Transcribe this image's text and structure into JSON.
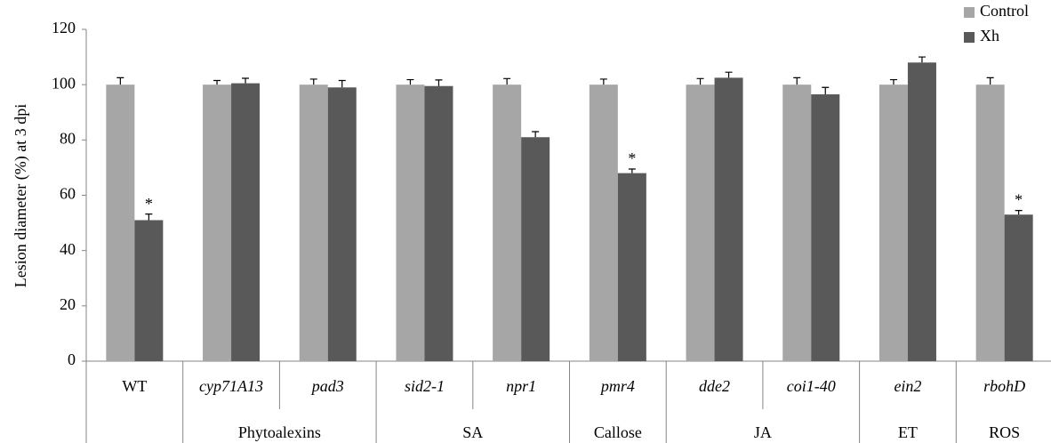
{
  "chart_data": {
    "type": "bar",
    "y_label": "Lesion diameter (%) at 3 dpi",
    "categories": [
      "WT",
      "cyp71A13",
      "pad3",
      "sid2-1",
      "npr1",
      "pmr4",
      "dde2",
      "coi1-40",
      "ein2",
      "rbohD"
    ],
    "italic_categories": [
      false,
      true,
      true,
      true,
      true,
      true,
      true,
      true,
      true,
      true
    ],
    "category_groups": [
      null,
      "Phytoalexins",
      "Phytoalexins",
      "SA",
      "SA",
      "Callose",
      "JA",
      "JA",
      "ET",
      "ROS"
    ],
    "series": [
      {
        "name": "Control",
        "color": "#a6a6a6",
        "values": [
          100,
          100,
          100,
          100,
          100,
          100,
          100,
          100,
          100,
          100
        ],
        "errors": [
          2.5,
          1.5,
          2,
          1.8,
          2.2,
          2,
          2.2,
          2.5,
          1.8,
          2.5
        ]
      },
      {
        "name": "Xh",
        "color": "#595959",
        "values": [
          51,
          100.5,
          99,
          99.5,
          81,
          68,
          102.5,
          96.5,
          108,
          53
        ],
        "errors": [
          2.2,
          1.8,
          2.5,
          2.2,
          2,
          1.5,
          2,
          2.5,
          2,
          1.5
        ],
        "significance": [
          "*",
          null,
          null,
          null,
          null,
          "*",
          null,
          null,
          null,
          "*"
        ]
      }
    ],
    "ylim": [
      0,
      120
    ],
    "yticks": [
      0,
      20,
      40,
      60,
      80,
      100,
      120
    ],
    "grid": false,
    "legend": "top-right"
  }
}
